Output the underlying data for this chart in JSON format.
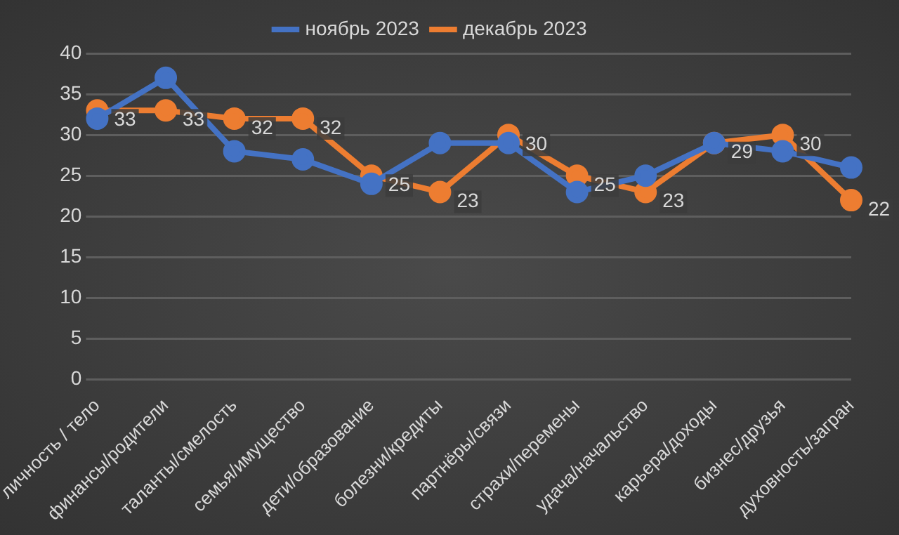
{
  "chart_data": {
    "type": "line",
    "categories": [
      "личность / тело",
      "финансы/родители",
      "таланты/смелость",
      "семья/имущество",
      "дети/образование",
      "болезни/кредиты",
      "партнёры/связи",
      "страхи/перемены",
      "удача/начальство",
      "карьера/доходы",
      "бизнес/друзья",
      "духовность/загран"
    ],
    "series": [
      {
        "name": "ноябрь 2023",
        "color": "#4472c4",
        "values": [
          32,
          37,
          28,
          27,
          24,
          29,
          29,
          23,
          25,
          29,
          28,
          26
        ]
      },
      {
        "name": "декабрь 2023",
        "color": "#ed7d31",
        "values": [
          33,
          33,
          32,
          32,
          25,
          23,
          30,
          25,
          23,
          29,
          30,
          22
        ],
        "value_labels": [
          "33",
          "33",
          "32",
          "32",
          "25",
          "23",
          "30",
          "25",
          "23",
          "29",
          "30",
          "22"
        ]
      }
    ],
    "ylim": [
      0,
      40
    ],
    "yticks": [
      0,
      5,
      10,
      15,
      20,
      25,
      30,
      35,
      40
    ],
    "grid": "y",
    "legend": "top",
    "marker": "circle",
    "line_style": "solid"
  }
}
